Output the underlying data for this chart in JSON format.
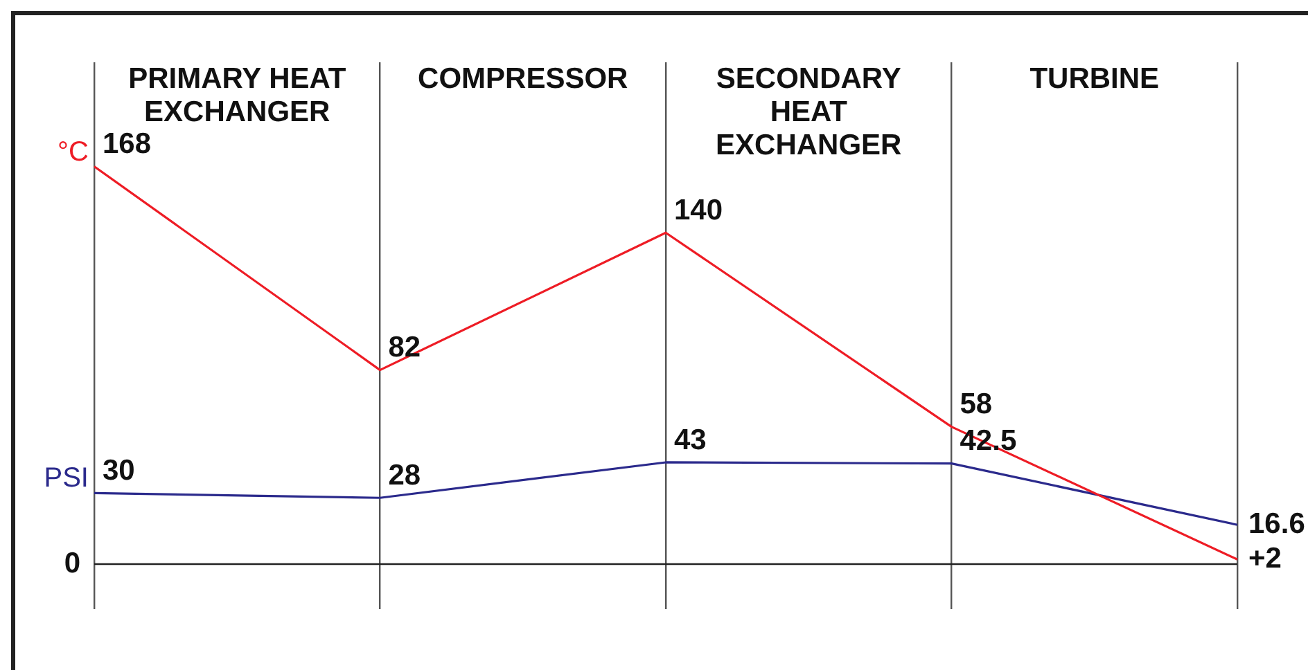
{
  "chart_data": {
    "type": "line",
    "categories": [
      null,
      null,
      null,
      null,
      null
    ],
    "ylim": [
      -19,
      212
    ],
    "grid": "x",
    "legend": false,
    "marker": "none",
    "series": [
      {
        "name": "°C",
        "color": "#ee1c25",
        "values": [
          168,
          82,
          140,
          58,
          2
        ],
        "value_labels": [
          "168",
          "82",
          "140",
          "58",
          "+2"
        ]
      },
      {
        "name": "PSI",
        "color": "#2b2a8c",
        "values": [
          30,
          28,
          43,
          42.5,
          16.6
        ],
        "value_labels": [
          "30",
          "28",
          "43",
          "42.5",
          "16.6"
        ]
      }
    ],
    "ref_lines": [
      {
        "axis": "y",
        "value": 0,
        "label": "0"
      }
    ],
    "annotations": [
      "PRIMARY HEAT\nEXCHANGER",
      "COMPRESSOR",
      "SECONDARY\nHEAT\nEXCHANGER",
      "TURBINE"
    ]
  }
}
